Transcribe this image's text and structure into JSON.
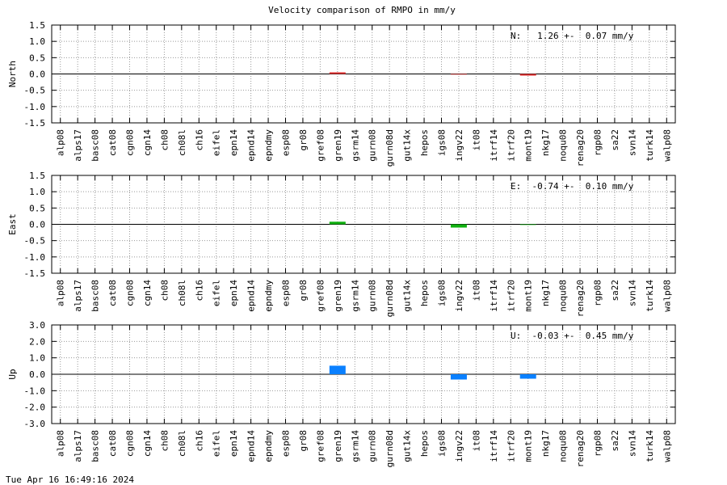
{
  "chart_data": [
    {
      "type": "bar",
      "title": "Velocity comparison of RMPO in mm/y",
      "ylabel": "North",
      "annotation": "N:   1.26 +-  0.07 mm/y",
      "categories": [
        "alp08",
        "alps17",
        "basc08",
        "cat08",
        "cgn08",
        "cgn14",
        "ch08",
        "ch08l",
        "ch16",
        "eifel",
        "epn14",
        "epnd14",
        "epndmy",
        "esp08",
        "gr08",
        "gref08",
        "gren19",
        "gsrm14",
        "gurn08",
        "gurn08d",
        "gut14x",
        "hepos",
        "igs08",
        "ingv22",
        "it08",
        "itrf14",
        "itrf20",
        "mont19",
        "nkg17",
        "noqu08",
        "renag20",
        "rgp08",
        "sa22",
        "svn14",
        "turk14",
        "walp08"
      ],
      "values": [
        0,
        0,
        0,
        0,
        0,
        0,
        0,
        0,
        0,
        0,
        0,
        0,
        0,
        0,
        0,
        0,
        0.05,
        0,
        0,
        0,
        0,
        0,
        0,
        -0.02,
        0,
        0,
        0,
        -0.05,
        0,
        0,
        0,
        0,
        0,
        0,
        0,
        0
      ],
      "color": "#e03030",
      "ylim": [
        -1.5,
        1.5
      ],
      "yticks": [
        {
          "value": 1.5,
          "label": "1.5"
        },
        {
          "value": 1,
          "label": "1.0"
        },
        0.5,
        {
          "value": 0,
          "label": "0.0"
        },
        -0.5,
        {
          "value": -1,
          "label": "-1.0"
        },
        -1.5
      ],
      "grid": true
    },
    {
      "type": "bar",
      "ylabel": "East",
      "annotation": "E:  -0.74 +-  0.10 mm/y",
      "categories": [
        "alp08",
        "alps17",
        "basc08",
        "cat08",
        "cgn08",
        "cgn14",
        "ch08",
        "ch08l",
        "ch16",
        "eifel",
        "epn14",
        "epnd14",
        "epndmy",
        "esp08",
        "gr08",
        "gref08",
        "gren19",
        "gsrm14",
        "gurn08",
        "gurn08d",
        "gut14x",
        "hepos",
        "igs08",
        "ingv22",
        "it08",
        "itrf14",
        "itrf20",
        "mont19",
        "nkg17",
        "noqu08",
        "renag20",
        "rgp08",
        "sa22",
        "svn14",
        "turk14",
        "walp08"
      ],
      "values": [
        0,
        0,
        0,
        0,
        0,
        0,
        0,
        0,
        0,
        0,
        0,
        0,
        0,
        0,
        0,
        0,
        0.08,
        0,
        0,
        0,
        0,
        0,
        0,
        -0.1,
        0,
        0,
        0,
        -0.02,
        0,
        0,
        0,
        0,
        0,
        0,
        0,
        0
      ],
      "color": "#10b010",
      "ylim": [
        -1.5,
        1.5
      ],
      "yticks": [
        1.5,
        {
          "value": 1,
          "label": "1.0"
        },
        0.5,
        {
          "value": 0,
          "label": "0.0"
        },
        -0.5,
        {
          "value": -1,
          "label": "-1.0"
        },
        -1.5
      ],
      "grid": true
    },
    {
      "type": "bar",
      "ylabel": "Up",
      "annotation": "U:  -0.03 +-  0.45 mm/y",
      "categories": [
        "alp08",
        "alps17",
        "basc08",
        "cat08",
        "cgn08",
        "cgn14",
        "ch08",
        "ch08l",
        "ch16",
        "eifel",
        "epn14",
        "epnd14",
        "epndmy",
        "esp08",
        "gr08",
        "gref08",
        "gren19",
        "gsrm14",
        "gurn08",
        "gurn08d",
        "gut14x",
        "hepos",
        "igs08",
        "ingv22",
        "it08",
        "itrf14",
        "itrf20",
        "mont19",
        "nkg17",
        "noqu08",
        "renag20",
        "rgp08",
        "sa22",
        "svn14",
        "turk14",
        "walp08"
      ],
      "values": [
        0,
        0,
        0,
        0,
        0,
        0,
        0,
        0,
        0,
        0,
        0,
        0,
        0,
        0,
        0,
        0,
        0.52,
        0,
        0,
        0,
        0,
        0,
        0,
        -0.32,
        0,
        0,
        0,
        -0.27,
        0,
        0,
        0,
        0,
        0,
        0,
        0,
        0
      ],
      "color": "#0a80ff",
      "ylim": [
        -3,
        3
      ],
      "yticks": [
        {
          "value": 3,
          "label": "3.0"
        },
        {
          "value": 2,
          "label": "2.0"
        },
        {
          "value": 1,
          "label": "1.0"
        },
        {
          "value": 0,
          "label": "0.0"
        },
        {
          "value": -1,
          "label": "-1.0"
        },
        {
          "value": -2,
          "label": "-2.0"
        },
        {
          "value": -3,
          "label": "-3.0"
        }
      ],
      "grid": true
    }
  ],
  "footer": "Tue Apr 16 16:49:16 2024"
}
